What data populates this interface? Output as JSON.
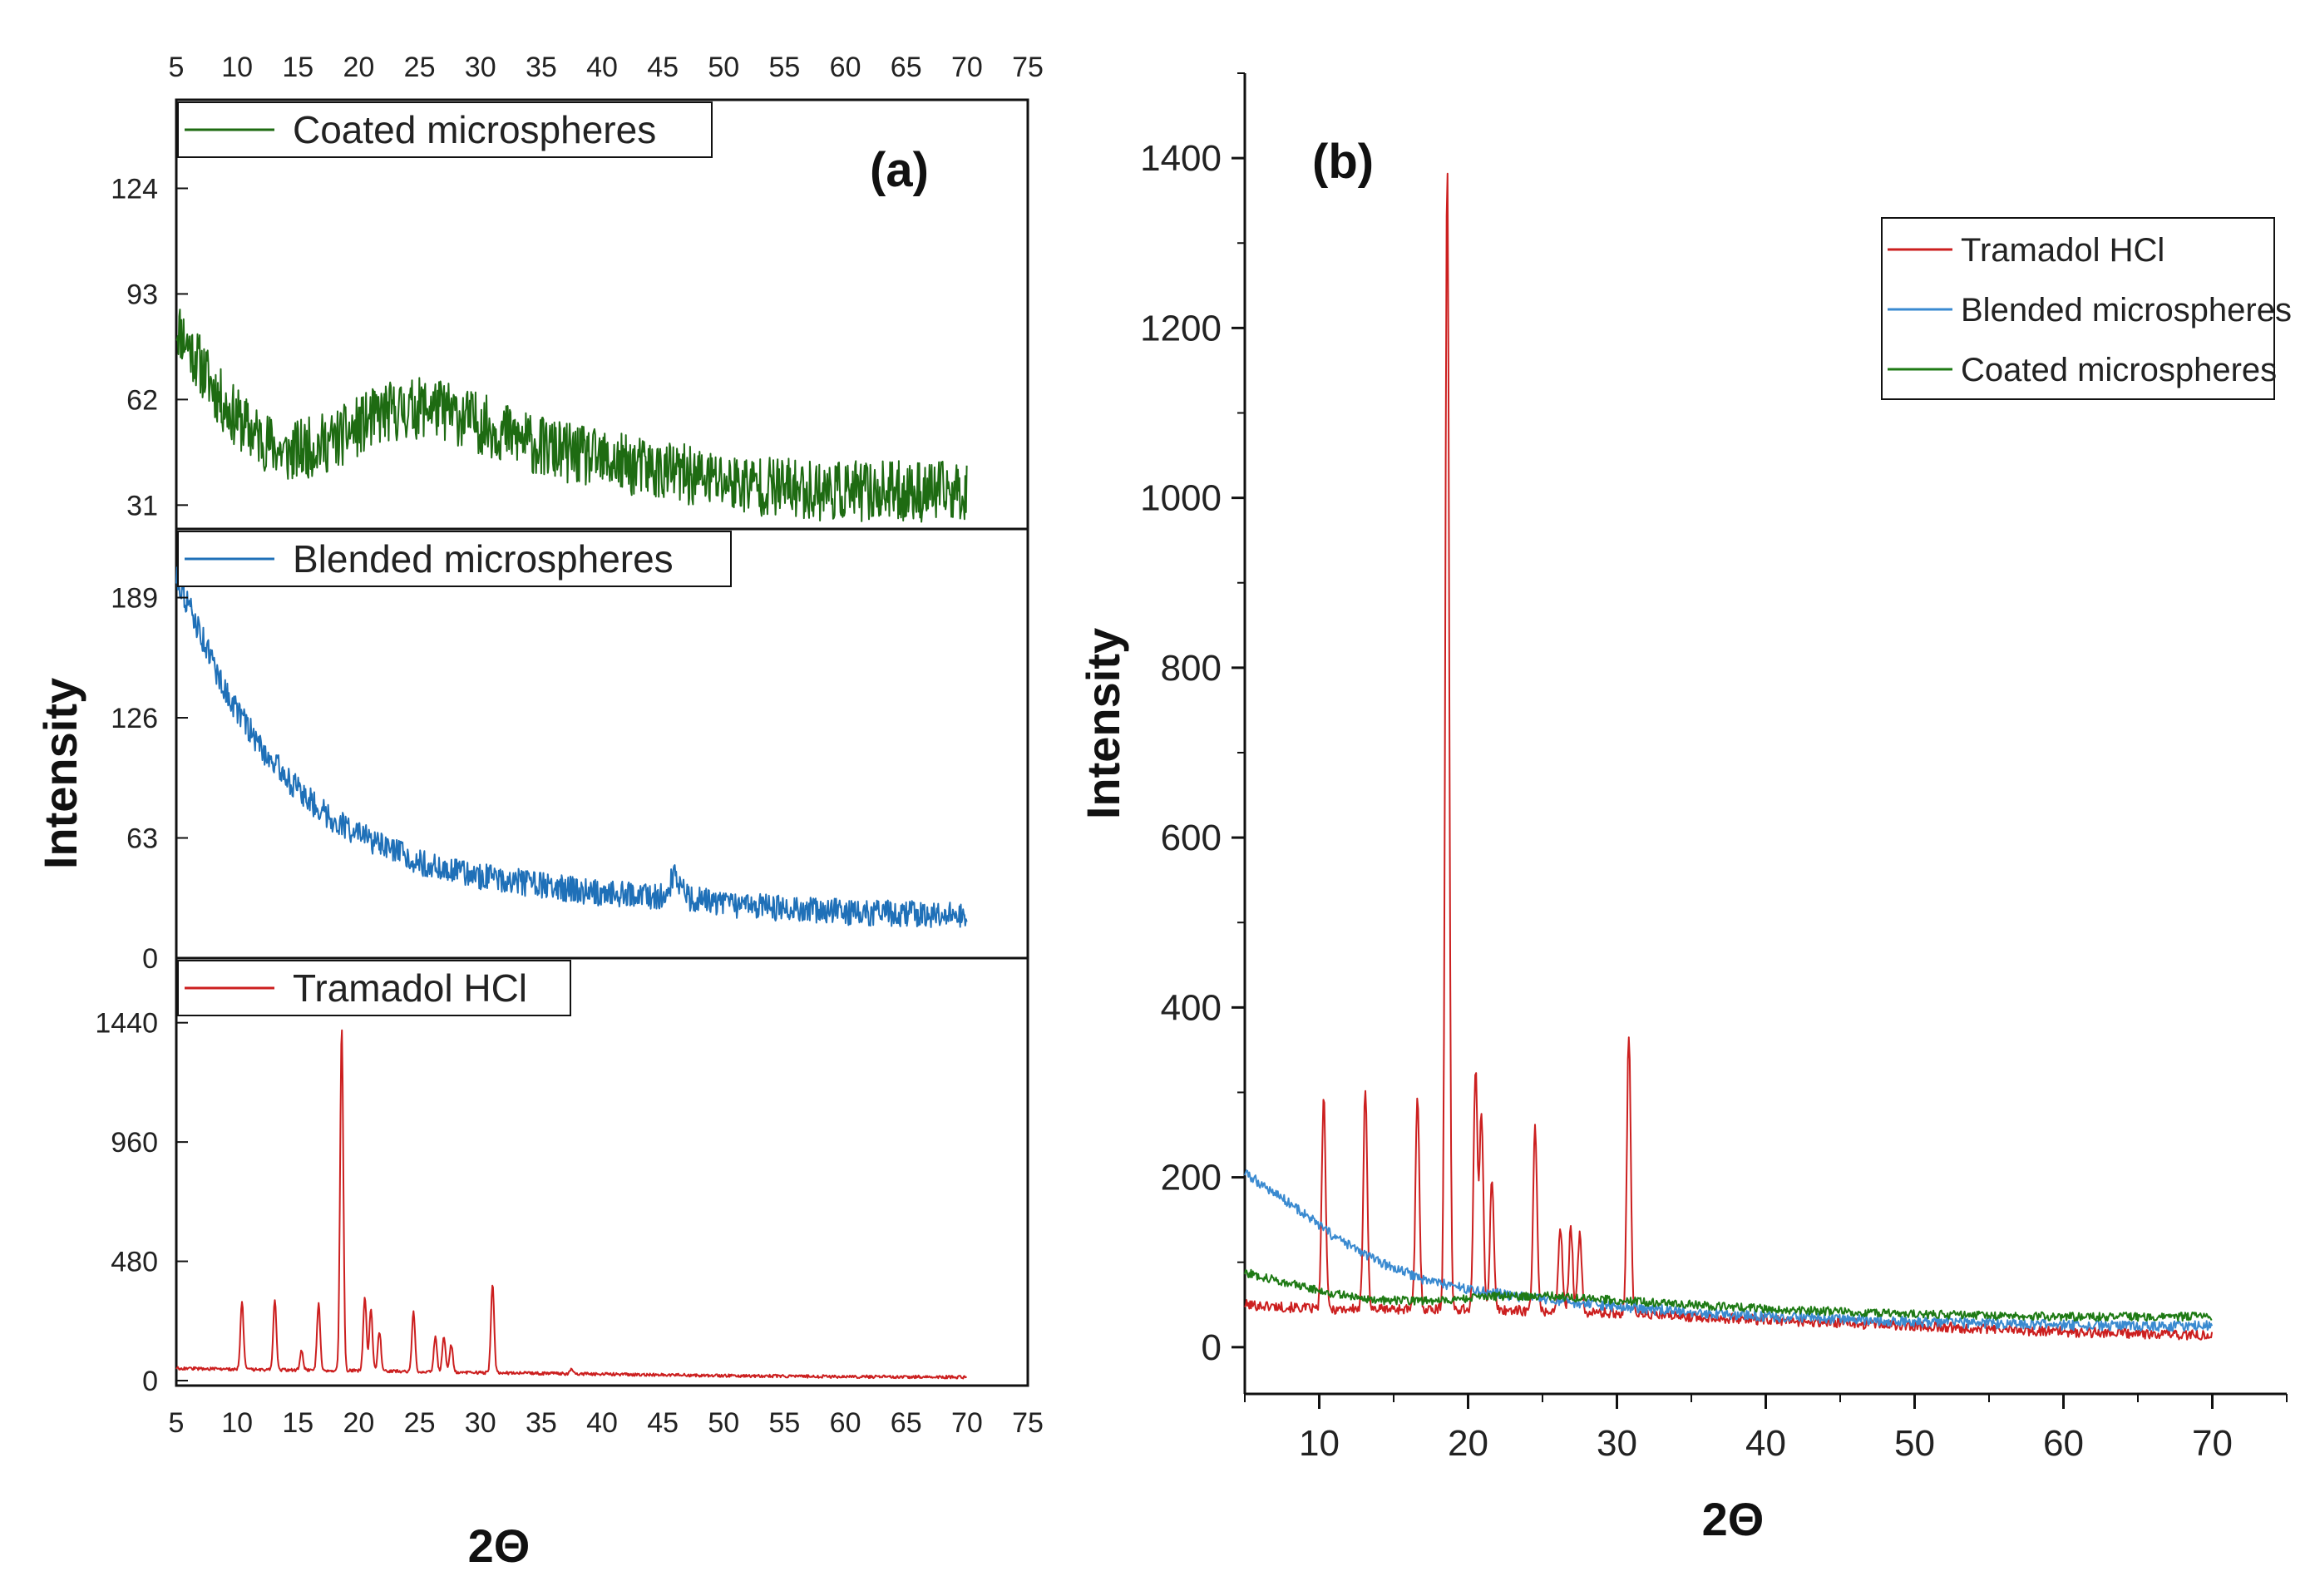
{
  "chart_data": [
    {
      "panel": "(a)",
      "type": "line",
      "layout": "stacked",
      "xlabel": "2Θ",
      "ylabel": "Intensity",
      "xlim": [
        5,
        75
      ],
      "x_ticks": [
        "5",
        "10",
        "15",
        "20",
        "25",
        "30",
        "35",
        "40",
        "45",
        "50",
        "55",
        "60",
        "65",
        "70",
        "75"
      ],
      "subplots": [
        {
          "name": "Coated microspheres",
          "color": "#1e6b12",
          "ylim": [
            24,
            150
          ],
          "y_ticks": [
            "31",
            "62",
            "93",
            "124"
          ],
          "profile": {
            "kind": "broad",
            "x_range": [
              5,
              70
            ],
            "baseline_points": [
              [
                5,
                84
              ],
              [
                7,
                72
              ],
              [
                9,
                60
              ],
              [
                11,
                53
              ],
              [
                14,
                46
              ],
              [
                18,
                50
              ],
              [
                22,
                58
              ],
              [
                26,
                60
              ],
              [
                30,
                55
              ],
              [
                35,
                48
              ],
              [
                40,
                44
              ],
              [
                45,
                41
              ],
              [
                50,
                38
              ],
              [
                55,
                36
              ],
              [
                60,
                35
              ],
              [
                65,
                35
              ],
              [
                70,
                35
              ]
            ],
            "noise": 9
          }
        },
        {
          "name": "Blended microspheres",
          "color": "#1f70b8",
          "ylim": [
            0,
            225
          ],
          "y_ticks": [
            "0",
            "63",
            "126",
            "189"
          ],
          "profile": {
            "kind": "decay",
            "x_range": [
              5,
              70
            ],
            "baseline_points": [
              [
                5,
                200
              ],
              [
                7,
                170
              ],
              [
                9,
                140
              ],
              [
                12,
                110
              ],
              [
                15,
                88
              ],
              [
                18,
                72
              ],
              [
                22,
                58
              ],
              [
                26,
                48
              ],
              [
                30,
                43
              ],
              [
                35,
                38
              ],
              [
                40,
                34
              ],
              [
                45,
                32
              ],
              [
                46,
                44
              ],
              [
                47,
                32
              ],
              [
                50,
                28
              ],
              [
                55,
                26
              ],
              [
                60,
                24
              ],
              [
                65,
                23
              ],
              [
                70,
                23
              ]
            ],
            "noise": 7
          }
        },
        {
          "name": "Tramadol HCl",
          "color": "#cc1f1f",
          "ylim": [
            -20,
            1700
          ],
          "y_ticks": [
            "0",
            "480",
            "960",
            "1440"
          ],
          "profile": {
            "kind": "peaks",
            "x_range": [
              5,
              70
            ],
            "baseline_points": [
              [
                5,
                50
              ],
              [
                10,
                45
              ],
              [
                20,
                40
              ],
              [
                30,
                32
              ],
              [
                40,
                26
              ],
              [
                50,
                20
              ],
              [
                60,
                16
              ],
              [
                70,
                14
              ]
            ],
            "noise": 6,
            "peaks": [
              [
                10.4,
                270
              ],
              [
                13.1,
                280
              ],
              [
                15.3,
                80
              ],
              [
                16.7,
                270
              ],
              [
                18.6,
                1380
              ],
              [
                20.5,
                300
              ],
              [
                21.0,
                250
              ],
              [
                21.7,
                160
              ],
              [
                24.5,
                240
              ],
              [
                26.3,
                140
              ],
              [
                27.0,
                140
              ],
              [
                27.6,
                110
              ],
              [
                31.0,
                360
              ],
              [
                37.5,
                20
              ]
            ]
          }
        }
      ]
    },
    {
      "panel": "(b)",
      "type": "line",
      "xlabel": "2Θ",
      "ylabel": "Intensity",
      "xlim": [
        5,
        75
      ],
      "ylim": [
        -55,
        1500
      ],
      "x_ticks": [
        "10",
        "20",
        "30",
        "40",
        "50",
        "60",
        "70"
      ],
      "y_ticks": [
        "0",
        "200",
        "400",
        "600",
        "800",
        "1000",
        "1200",
        "1400"
      ],
      "legend": [
        "Tramadol HCl",
        "Blended microspheres",
        "Coated microspheres"
      ],
      "series": [
        {
          "name": "Tramadol HCl",
          "color": "#cc1f1f",
          "x_range": [
            5,
            70
          ],
          "baseline_points": [
            [
              5,
              50
            ],
            [
              10,
              45
            ],
            [
              20,
              45
            ],
            [
              30,
              40
            ],
            [
              40,
              32
            ],
            [
              50,
              25
            ],
            [
              60,
              18
            ],
            [
              70,
              14
            ]
          ],
          "noise": 6,
          "peaks": [
            [
              10.3,
              250
            ],
            [
              13.1,
              260
            ],
            [
              16.6,
              250
            ],
            [
              18.6,
              1350
            ],
            [
              20.5,
              280
            ],
            [
              20.9,
              230
            ],
            [
              21.6,
              150
            ],
            [
              24.5,
              220
            ],
            [
              26.2,
              100
            ],
            [
              26.9,
              100
            ],
            [
              27.5,
              90
            ],
            [
              30.8,
              330
            ]
          ]
        },
        {
          "name": "Blended microspheres",
          "color": "#3a8ad0",
          "x_range": [
            5,
            70
          ],
          "baseline_points": [
            [
              5,
              205
            ],
            [
              8,
              170
            ],
            [
              11,
              130
            ],
            [
              14,
              100
            ],
            [
              17,
              80
            ],
            [
              20,
              68
            ],
            [
              24,
              58
            ],
            [
              28,
              50
            ],
            [
              32,
              45
            ],
            [
              36,
              40
            ],
            [
              40,
              36
            ],
            [
              45,
              33
            ],
            [
              50,
              30
            ],
            [
              55,
              28
            ],
            [
              60,
              26
            ],
            [
              65,
              25
            ],
            [
              70,
              25
            ]
          ],
          "noise": 6,
          "peaks": []
        },
        {
          "name": "Coated microspheres",
          "color": "#1e7a14",
          "x_range": [
            5,
            70
          ],
          "baseline_points": [
            [
              5,
              88
            ],
            [
              8,
              75
            ],
            [
              11,
              63
            ],
            [
              14,
              55
            ],
            [
              18,
              55
            ],
            [
              22,
              60
            ],
            [
              26,
              60
            ],
            [
              30,
              55
            ],
            [
              35,
              50
            ],
            [
              40,
              45
            ],
            [
              45,
              42
            ],
            [
              50,
              39
            ],
            [
              55,
              37
            ],
            [
              60,
              36
            ],
            [
              65,
              36
            ],
            [
              70,
              36
            ]
          ],
          "noise": 5,
          "peaks": []
        }
      ]
    }
  ]
}
